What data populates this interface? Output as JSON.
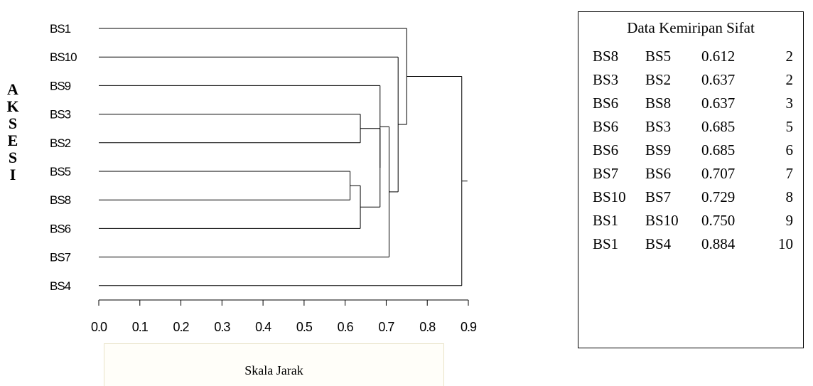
{
  "chart_data": {
    "type": "dendrogram",
    "leaves": [
      "BS1",
      "BS10",
      "BS9",
      "BS3",
      "BS2",
      "BS5",
      "BS8",
      "BS6",
      "BS7",
      "BS4"
    ],
    "merges": [
      {
        "a": "BS8",
        "b": "BS5",
        "distance": 0.612,
        "step": 2
      },
      {
        "a": "BS3",
        "b": "BS2",
        "distance": 0.637,
        "step": 2
      },
      {
        "a": "BS6",
        "b": "BS8",
        "distance": 0.637,
        "step": 3
      },
      {
        "a": "BS6",
        "b": "BS3",
        "distance": 0.685,
        "step": 5
      },
      {
        "a": "BS6",
        "b": "BS9",
        "distance": 0.685,
        "step": 6
      },
      {
        "a": "BS7",
        "b": "BS6",
        "distance": 0.707,
        "step": 7
      },
      {
        "a": "BS10",
        "b": "BS7",
        "distance": 0.729,
        "step": 8
      },
      {
        "a": "BS1",
        "b": "BS10",
        "distance": 0.75,
        "step": 9
      },
      {
        "a": "BS1",
        "b": "BS4",
        "distance": 0.884,
        "step": 10
      }
    ],
    "xlabel": "Skala Jarak",
    "ylabel": "AKSESI",
    "xticks": [
      "0.0",
      "0.1",
      "0.2",
      "0.3",
      "0.4",
      "0.5",
      "0.6",
      "0.7",
      "0.8",
      "0.9"
    ],
    "xlim": [
      0,
      0.9
    ],
    "grid": false
  },
  "table": {
    "title": "Data Kemiripan Sifat",
    "rows": [
      [
        "BS8",
        "BS5",
        "0.612",
        "2"
      ],
      [
        "BS3",
        "BS2",
        "0.637",
        "2"
      ],
      [
        "BS6",
        "BS8",
        "0.637",
        "3"
      ],
      [
        "BS6",
        "BS3",
        "0.685",
        "5"
      ],
      [
        "BS6",
        "BS9",
        "0.685",
        "6"
      ],
      [
        "BS7",
        "BS6",
        "0.707",
        "7"
      ],
      [
        "BS10",
        "BS7",
        "0.729",
        "8"
      ],
      [
        "BS1",
        "BS10",
        "0.750",
        "9"
      ],
      [
        "BS1",
        "BS4",
        "0.884",
        "10"
      ]
    ]
  }
}
